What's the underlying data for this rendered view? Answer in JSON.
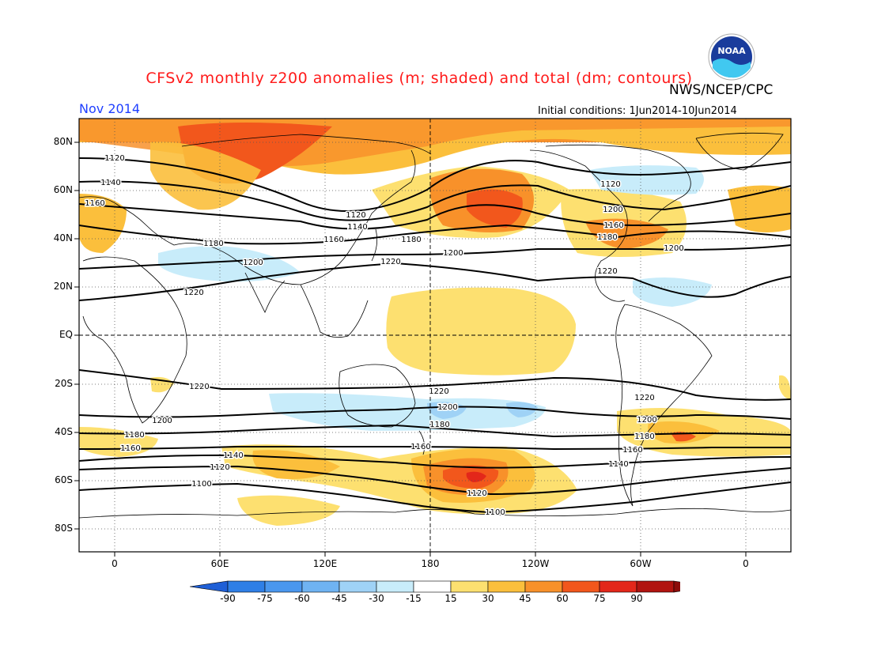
{
  "title": "CFSv2 monthly z200 anomalies (m; shaded) and total (dm; contours)",
  "agency": "NWS/NCEP/CPC",
  "month": "Nov 2014",
  "initial_conditions": "Initial conditions: 1Jun2014-10Jun2014",
  "logo_text": "NOAA",
  "lat_labels": [
    "80N",
    "60N",
    "40N",
    "20N",
    "EQ",
    "20S",
    "40S",
    "60S",
    "80S"
  ],
  "lon_labels": [
    "0",
    "60E",
    "120E",
    "180",
    "120W",
    "60W",
    "0"
  ],
  "colorbar": {
    "labels": [
      "-90",
      "-75",
      "-60",
      "-45",
      "-30",
      "-15",
      "15",
      "30",
      "45",
      "60",
      "75",
      "90"
    ],
    "colors": [
      "#1f5fd6",
      "#2f7fe6",
      "#4a97ee",
      "#6fb3f2",
      "#9fd2f6",
      "#c8ecfa",
      "#ffffff",
      "#fde070",
      "#fbbf3c",
      "#f8912a",
      "#f2571c",
      "#e3271a",
      "#b11410",
      "#8c0d0b"
    ]
  },
  "contour_labels": {
    "nh": [
      "1120",
      "1140",
      "1160",
      "1180",
      "1200",
      "1220",
      "1120",
      "1160",
      "1180",
      "1200",
      "1220",
      "1140",
      "1160",
      "1180",
      "1120",
      "1200",
      "1220",
      "1200"
    ],
    "sh": [
      "1220",
      "1200",
      "1180",
      "1160",
      "1140",
      "1120",
      "1100",
      "1220",
      "1200",
      "1180",
      "1160",
      "1120",
      "1100",
      "1220",
      "1200",
      "1180",
      "1160",
      "1140"
    ]
  },
  "colors": {
    "title": "#ff1a1a",
    "month": "#1f3fff",
    "contour": "#000000",
    "coast": "#000000",
    "grid": "#555555"
  }
}
